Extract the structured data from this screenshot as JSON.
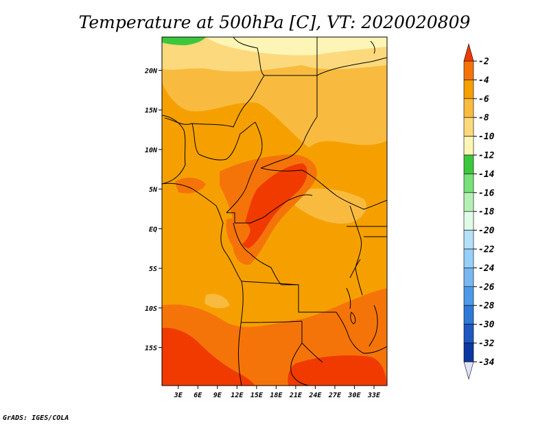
{
  "title": "Temperature at 500hPa [C], VT: 2020020809",
  "credit": "GrADS: IGES/COLA",
  "lat_labels": [
    "20N",
    "15N",
    "10N",
    "5N",
    "EQ",
    "5S",
    "10S",
    "15S"
  ],
  "lat_values": [
    20,
    15,
    10,
    5,
    0,
    -5,
    -10,
    -15
  ],
  "lon_labels": [
    "3E",
    "6E",
    "9E",
    "12E",
    "15E",
    "18E",
    "21E",
    "24E",
    "27E",
    "30E",
    "33E"
  ],
  "lon_values": [
    3,
    6,
    9,
    12,
    15,
    18,
    21,
    24,
    27,
    30,
    33
  ],
  "colorbar": {
    "labels": [
      "-2",
      "-4",
      "-6",
      "-8",
      "-10",
      "-12",
      "-14",
      "-16",
      "-18",
      "-20",
      "-22",
      "-24",
      "-26",
      "-28",
      "-30",
      "-32",
      "-34"
    ],
    "colors": [
      "#f03a00",
      "#f5740a",
      "#f5a000",
      "#f8bb3f",
      "#fcd97c",
      "#fdf5b5",
      "#3cc83c",
      "#78e078",
      "#b4f0b4",
      "#e0fae8",
      "#b4e0f8",
      "#96d0f8",
      "#78b8f0",
      "#4c9ae8",
      "#2e78d8",
      "#1e58c0",
      "#0c38a0",
      "#080c60"
    ],
    "top_color": "#f03a00",
    "bottom_color": "#e0e4fa"
  },
  "colors": {
    "base": "#f5a000",
    "warm": "#f5740a",
    "hot": "#f03a00",
    "cool": "#f8bb3f",
    "cooler": "#fcd97c",
    "coolest": "#fdf5b5",
    "green": "#3cc83c"
  }
}
